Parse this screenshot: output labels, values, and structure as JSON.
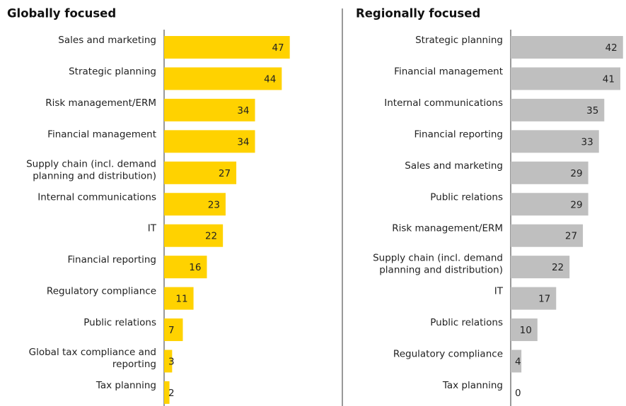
{
  "chart_data": [
    {
      "type": "bar",
      "title": "Globally focused",
      "color": "#ffd200",
      "xlim": [
        0,
        50
      ],
      "categories": [
        "Sales and marketing",
        "Strategic planning",
        "Risk management/ERM",
        "Financial management",
        "Supply chain (incl. demand\nplanning and distribution)",
        "Internal communications",
        "IT",
        "Financial reporting",
        "Regulatory compliance",
        "Public relations",
        "Global tax compliance and\nreporting",
        "Tax planning"
      ],
      "values": [
        47,
        44,
        34,
        34,
        27,
        23,
        22,
        16,
        11,
        7,
        3,
        2
      ]
    },
    {
      "type": "bar",
      "title": "Regionally focused",
      "color": "#bfbfbf",
      "xlim": [
        0,
        50
      ],
      "categories": [
        "Strategic planning",
        "Financial management",
        "Internal communications",
        "Financial reporting",
        "Sales and marketing",
        "Public relations",
        "Risk management/ERM",
        "Supply chain (incl. demand\nplanning and distribution)",
        "IT",
        "Public relations",
        "Regulatory compliance",
        "Tax planning"
      ],
      "values": [
        42,
        41,
        35,
        33,
        29,
        29,
        27,
        22,
        17,
        10,
        4,
        0
      ]
    }
  ]
}
